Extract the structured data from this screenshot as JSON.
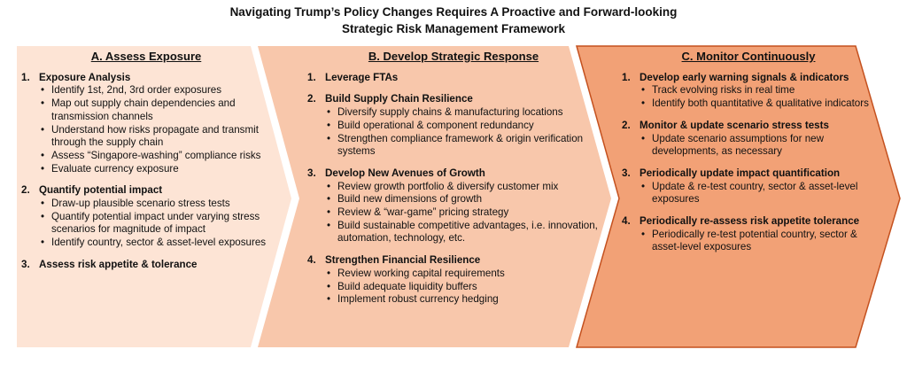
{
  "title_line1": "Navigating Trump’s Policy Changes Requires A Proactive and Forward-looking",
  "title_line2": "Strategic Risk Management Framework",
  "colors": {
    "panel_a": "#fde4d5",
    "panel_b": "#f8c7ab",
    "panel_c": "#f2a176",
    "panel_c_border": "#c4511f"
  },
  "panels": [
    {
      "title": "A. Assess Exposure",
      "sections": [
        {
          "num": "1.",
          "head": "Exposure Analysis",
          "bullets": [
            "Identify 1st, 2nd, 3rd order exposures",
            "Map out supply chain dependencies and transmission channels",
            "Understand how risks propagate and transmit through the supply chain",
            "Assess “Singapore-washing” compliance risks",
            "Evaluate currency exposure"
          ]
        },
        {
          "num": "2.",
          "head": "Quantify potential impact",
          "bullets": [
            "Draw-up plausible scenario stress tests",
            "Quantify potential impact under varying stress scenarios for magnitude of impact",
            "Identify country, sector & asset-level exposures"
          ]
        },
        {
          "num": "3.",
          "head": "Assess risk appetite & tolerance",
          "bullets": []
        }
      ]
    },
    {
      "title": "B. Develop Strategic Response",
      "sections": [
        {
          "num": "1.",
          "head": "Leverage FTAs",
          "bullets": []
        },
        {
          "num": "2.",
          "head": "Build Supply Chain Resilience",
          "bullets": [
            "Diversify supply chains & manufacturing locations",
            "Build operational & component redundancy",
            "Strengthen compliance framework & origin verification systems"
          ]
        },
        {
          "num": "3.",
          "head": "Develop New Avenues of Growth",
          "bullets": [
            "Review growth portfolio & diversify customer mix",
            "Build new dimensions of growth",
            "Review & “war-game” pricing strategy",
            "Build sustainable competitive advantages, i.e. innovation, automation, technology, etc."
          ]
        },
        {
          "num": "4.",
          "head": "Strengthen Financial Resilience",
          "bullets": [
            "Review working capital requirements",
            "Build adequate liquidity buffers",
            "Implement robust currency hedging"
          ]
        }
      ]
    },
    {
      "title": "C. Monitor Continuously",
      "sections": [
        {
          "num": "1.",
          "head": "Develop early warning signals & indicators",
          "bullets": [
            "Track evolving risks in real time",
            "Identify both quantitative & qualitative indicators"
          ]
        },
        {
          "num": "2.",
          "head": "Monitor & update scenario stress tests",
          "bullets": [
            "Update scenario assumptions for new developments, as necessary"
          ]
        },
        {
          "num": "3.",
          "head": "Periodically update impact quantification",
          "bullets": [
            "Update & re-test country, sector & asset-level exposures"
          ]
        },
        {
          "num": "4.",
          "head": "Periodically re-assess risk appetite tolerance",
          "bullets": [
            "Periodically re-test potential country, sector & asset-level exposures"
          ]
        }
      ]
    }
  ]
}
